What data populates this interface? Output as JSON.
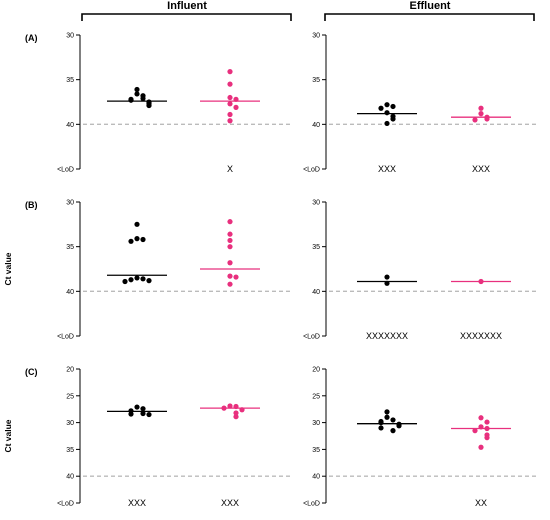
{
  "header": {
    "left": "Influent",
    "right": "Effluent"
  },
  "colors": {
    "black_series": "#000000",
    "pink_series": "#e8307e",
    "dashed": "#bbbbbb"
  },
  "chart_data": [
    {
      "type": "scatter",
      "row": 0,
      "col": 0,
      "panel_label": "(A)",
      "ylabel": "",
      "yrange": [
        30,
        45
      ],
      "yticks": [
        30,
        35,
        40
      ],
      "lod_label": "<LoD",
      "dashed_y": 40,
      "series": [
        {
          "values": [
            36.1,
            36.6,
            36.8,
            37.1,
            37.3,
            37.5,
            37.2,
            37.6,
            37.9,
            37.7
          ],
          "median": 37.4,
          "nd": ""
        },
        {
          "values": [
            34.1,
            35.5,
            37.0,
            37.2,
            37.7,
            38.1,
            38.9,
            39.6
          ],
          "median": 37.4,
          "nd": "X"
        }
      ]
    },
    {
      "type": "scatter",
      "row": 0,
      "col": 1,
      "panel_label": "",
      "ylabel": "",
      "yrange": [
        30,
        45
      ],
      "yticks": [
        30,
        35,
        40
      ],
      "lod_label": "<LoD",
      "dashed_y": 40,
      "series": [
        {
          "values": [
            37.8,
            38.0,
            38.2,
            38.7,
            39.1,
            39.4,
            39.9
          ],
          "median": 38.8,
          "nd": "XXX"
        },
        {
          "values": [
            38.2,
            38.8,
            39.2,
            39.4,
            39.5
          ],
          "median": 39.2,
          "nd": "XXX"
        }
      ]
    },
    {
      "type": "scatter",
      "row": 1,
      "col": 0,
      "panel_label": "(B)",
      "ylabel": "Ct value",
      "yrange": [
        30,
        45
      ],
      "yticks": [
        30,
        35,
        40
      ],
      "lod_label": "<LoD",
      "dashed_y": 40,
      "series": [
        {
          "values": [
            32.5,
            34.1,
            34.4,
            34.2,
            38.5,
            38.7,
            38.9,
            38.6,
            38.8
          ],
          "median": 38.2,
          "nd": ""
        },
        {
          "values": [
            32.2,
            33.6,
            34.3,
            35.0,
            36.8,
            38.3,
            38.4,
            39.2
          ],
          "median": 37.5,
          "nd": ""
        }
      ]
    },
    {
      "type": "scatter",
      "row": 1,
      "col": 1,
      "panel_label": "",
      "ylabel": "",
      "yrange": [
        30,
        45
      ],
      "yticks": [
        30,
        35,
        40
      ],
      "lod_label": "<LoD",
      "dashed_y": 40,
      "series": [
        {
          "values": [
            38.4,
            39.1
          ],
          "median": 38.9,
          "nd": "XXXXXXX"
        },
        {
          "values": [
            38.9
          ],
          "median": 38.9,
          "nd": "XXXXXXX"
        }
      ]
    },
    {
      "type": "scatter",
      "row": 2,
      "col": 0,
      "panel_label": "(C)",
      "ylabel": "Ct value",
      "yrange": [
        20,
        45
      ],
      "yticks": [
        20,
        25,
        30,
        35,
        40
      ],
      "lod_label": "<LoD",
      "dashed_y": 40,
      "series": [
        {
          "values": [
            27.1,
            27.4,
            27.8,
            28.3,
            28.4,
            28.5
          ],
          "median": 27.9,
          "nd": "XXX"
        },
        {
          "values": [
            26.9,
            27.0,
            27.3,
            27.6,
            28.2,
            28.9
          ],
          "median": 27.3,
          "nd": "XXX"
        }
      ]
    },
    {
      "type": "scatter",
      "row": 2,
      "col": 1,
      "panel_label": "",
      "ylabel": "",
      "yrange": [
        20,
        45
      ],
      "yticks": [
        20,
        25,
        30,
        35,
        40
      ],
      "lod_label": "<LoD",
      "dashed_y": 40,
      "series": [
        {
          "values": [
            28.0,
            29.0,
            29.5,
            29.8,
            30.0,
            30.3,
            30.6,
            31.0,
            31.5
          ],
          "median": 30.2,
          "nd": ""
        },
        {
          "values": [
            29.1,
            29.9,
            30.8,
            31.1,
            31.5,
            32.3,
            32.8,
            34.6
          ],
          "median": 31.1,
          "nd": "XX"
        }
      ]
    }
  ]
}
